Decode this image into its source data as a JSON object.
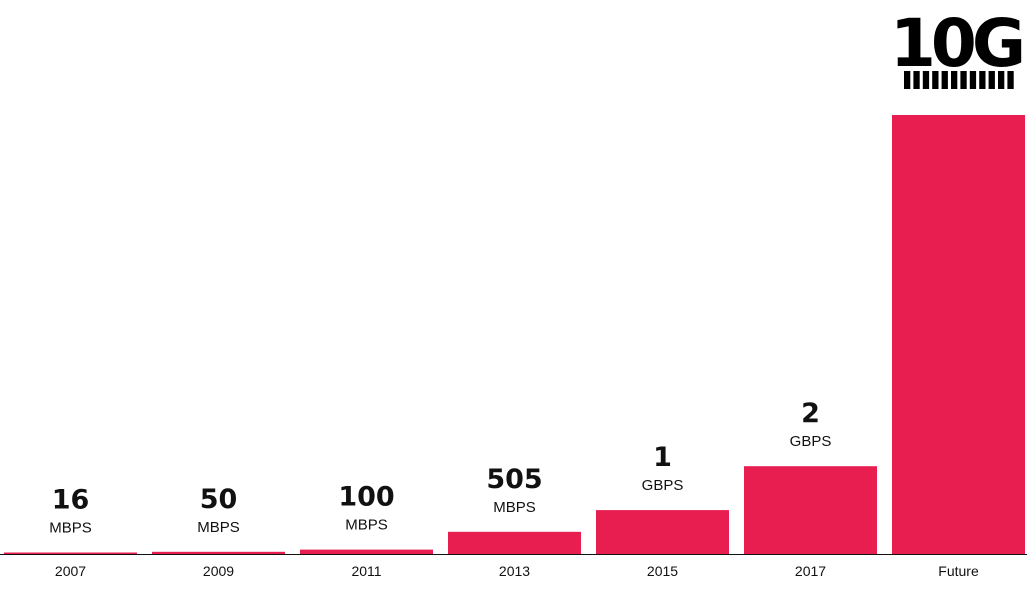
{
  "chart_data": {
    "type": "bar",
    "categories": [
      "2007",
      "2009",
      "2011",
      "2013",
      "2015",
      "2017",
      "Future"
    ],
    "values": [
      16,
      50,
      100,
      505,
      1000,
      2000,
      10000
    ],
    "unit": "Mbps",
    "data_labels": [
      {
        "value": "16",
        "unit": "MBPS"
      },
      {
        "value": "50",
        "unit": "MBPS"
      },
      {
        "value": "100",
        "unit": "MBPS"
      },
      {
        "value": "505",
        "unit": "MBPS"
      },
      {
        "value": "1",
        "unit": "GBPS"
      },
      {
        "value": "2",
        "unit": "GBPS"
      },
      {
        "value": "",
        "unit": ""
      }
    ],
    "ylim": [
      0,
      10000
    ],
    "grid": false,
    "legend": "none",
    "bar_color": "#e81e50",
    "axis_color": "#111111"
  },
  "logo": {
    "text": "10G",
    "color": "#000000",
    "stripe_count": 12
  }
}
